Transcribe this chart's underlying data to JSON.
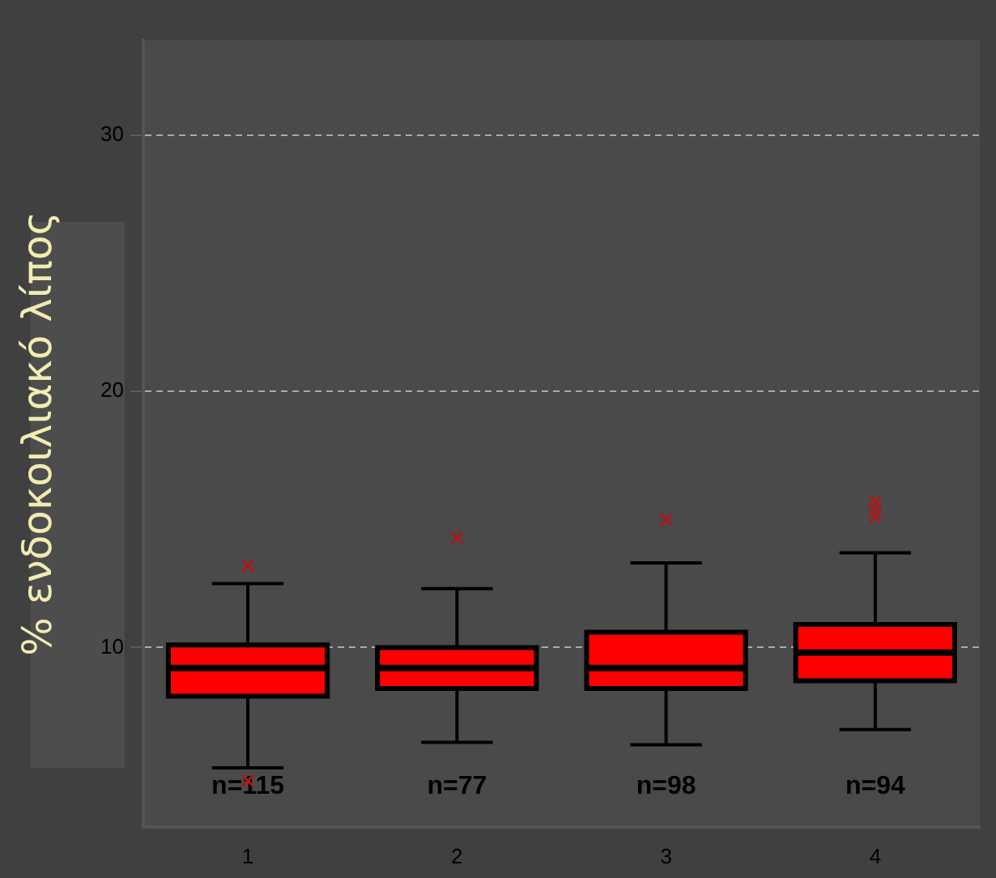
{
  "chart_data": {
    "type": "box",
    "ylabel": "% ενδοκοιλιακό λίπος",
    "categories": [
      "1",
      "2",
      "3",
      "4"
    ],
    "series": [
      {
        "color": "#ff0000",
        "boxes": [
          {
            "low": 5.3,
            "q1": 8.1,
            "median": 9.2,
            "q3": 10.1,
            "high": 12.5,
            "outliers": [
              13.2,
              4.8
            ]
          },
          {
            "low": 6.3,
            "q1": 8.4,
            "median": 9.2,
            "q3": 10.0,
            "high": 12.3,
            "outliers": [
              14.3
            ]
          },
          {
            "low": 6.2,
            "q1": 8.4,
            "median": 9.2,
            "q3": 10.6,
            "high": 13.3,
            "outliers": [
              15.0
            ]
          },
          {
            "low": 6.8,
            "q1": 8.7,
            "median": 9.8,
            "q3": 10.9,
            "high": 13.7,
            "outliers": [
              15.1,
              15.4,
              15.7
            ]
          }
        ]
      }
    ],
    "ylim": [
      3,
      33.7
    ],
    "yticks": [
      10,
      20,
      30
    ],
    "grid": "y",
    "legend": false,
    "marker": "cross",
    "annotations": [
      "n=115",
      "n=77",
      "n=98",
      "n=94"
    ]
  }
}
